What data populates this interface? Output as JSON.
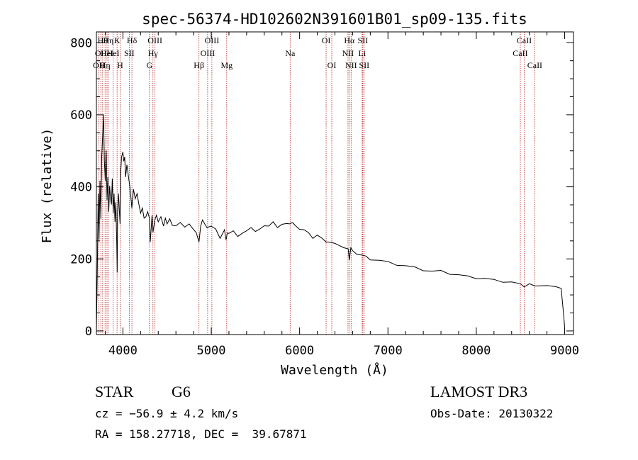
{
  "chart_data": {
    "type": "line",
    "title": "spec-56374-HD102602N391601B01_sp09-135.fits",
    "xlabel": "Wavelength (Å)",
    "ylabel": "Flux (relative)",
    "xlim": [
      3700,
      9100
    ],
    "ylim": [
      -10,
      830
    ],
    "xticks": [
      4000,
      5000,
      6000,
      7000,
      8000,
      9000
    ],
    "yticks": [
      0,
      200,
      400,
      600,
      800
    ],
    "series": [
      {
        "name": "flux",
        "x": [
          3700,
          3710,
          3720,
          3730,
          3740,
          3750,
          3760,
          3770,
          3780,
          3790,
          3800,
          3810,
          3820,
          3830,
          3840,
          3850,
          3860,
          3870,
          3880,
          3890,
          3900,
          3910,
          3920,
          3930,
          3935,
          3940,
          3950,
          3960,
          3968,
          3975,
          3985,
          4000,
          4010,
          4020,
          4030,
          4045,
          4060,
          4080,
          4101,
          4120,
          4140,
          4160,
          4180,
          4200,
          4220,
          4240,
          4260,
          4280,
          4300,
          4310,
          4330,
          4340,
          4360,
          4380,
          4400,
          4430,
          4460,
          4480,
          4500,
          4530,
          4560,
          4600,
          4650,
          4700,
          4750,
          4800,
          4830,
          4861,
          4880,
          4900,
          4950,
          5000,
          5050,
          5100,
          5150,
          5167,
          5183,
          5200,
          5250,
          5300,
          5350,
          5400,
          5450,
          5500,
          5550,
          5600,
          5650,
          5700,
          5750,
          5800,
          5850,
          5890,
          5920,
          5950,
          6000,
          6050,
          6100,
          6150,
          6200,
          6250,
          6300,
          6350,
          6400,
          6450,
          6500,
          6550,
          6563,
          6580,
          6600,
          6650,
          6700,
          6750,
          6800,
          6900,
          7000,
          7100,
          7200,
          7300,
          7400,
          7500,
          7600,
          7700,
          7800,
          7900,
          8000,
          8100,
          8200,
          8300,
          8400,
          8498,
          8542,
          8600,
          8662,
          8700,
          8800,
          8900,
          8960,
          8990,
          9000
        ],
        "y": [
          0,
          160,
          380,
          250,
          420,
          310,
          480,
          540,
          600,
          470,
          420,
          500,
          360,
          430,
          330,
          400,
          370,
          350,
          420,
          330,
          380,
          300,
          360,
          240,
          160,
          330,
          380,
          330,
          300,
          440,
          480,
          500,
          470,
          480,
          430,
          460,
          430,
          400,
          340,
          390,
          370,
          380,
          350,
          330,
          340,
          310,
          320,
          330,
          310,
          250,
          320,
          270,
          310,
          320,
          300,
          320,
          290,
          310,
          300,
          310,
          290,
          295,
          300,
          285,
          300,
          280,
          270,
          250,
          290,
          305,
          290,
          290,
          280,
          260,
          280,
          250,
          275,
          270,
          275,
          265,
          270,
          275,
          290,
          275,
          280,
          295,
          290,
          300,
          290,
          295,
          295,
          300,
          300,
          290,
          285,
          280,
          270,
          260,
          265,
          255,
          250,
          245,
          240,
          240,
          230,
          225,
          200,
          230,
          220,
          215,
          210,
          205,
          200,
          195,
          190,
          185,
          180,
          175,
          170,
          165,
          165,
          160,
          155,
          150,
          148,
          145,
          140,
          138,
          135,
          128,
          125,
          130,
          122,
          128,
          125,
          120,
          118,
          40,
          10
        ]
      }
    ],
    "lines": [
      {
        "wl": 3727,
        "label": "OII",
        "row": 2
      },
      {
        "wl": 3750,
        "label": "OII",
        "row": 1
      },
      {
        "wl": 3771,
        "label": "Hθ",
        "row": 0
      },
      {
        "wl": 3798,
        "label": "Hη",
        "row": 2
      },
      {
        "wl": 3820,
        "label": "HeI",
        "row": 1
      },
      {
        "wl": 3835,
        "label": "Hη",
        "row": 0
      },
      {
        "wl": 3889,
        "label": "HeI",
        "row": 1
      },
      {
        "wl": 3934,
        "label": "K",
        "row": 0
      },
      {
        "wl": 3968,
        "label": "H",
        "row": 2
      },
      {
        "wl": 4072,
        "label": "SII",
        "row": 1
      },
      {
        "wl": 4102,
        "label": "Hδ",
        "row": 0
      },
      {
        "wl": 4300,
        "label": "G",
        "row": 2
      },
      {
        "wl": 4340,
        "label": "Hγ",
        "row": 1
      },
      {
        "wl": 4363,
        "label": "OIII",
        "row": 0
      },
      {
        "wl": 4861,
        "label": "Hβ",
        "row": 2
      },
      {
        "wl": 4959,
        "label": "OIII",
        "row": 1
      },
      {
        "wl": 5007,
        "label": "OIII",
        "row": 0
      },
      {
        "wl": 5175,
        "label": "Mg",
        "row": 2
      },
      {
        "wl": 5893,
        "label": "Na",
        "row": 1
      },
      {
        "wl": 6300,
        "label": "OI",
        "row": 0
      },
      {
        "wl": 6364,
        "label": "OI",
        "row": 2
      },
      {
        "wl": 6548,
        "label": "NII",
        "row": 1
      },
      {
        "wl": 6563,
        "label": "Hα",
        "row": 0
      },
      {
        "wl": 6583,
        "label": "NII",
        "row": 2
      },
      {
        "wl": 6708,
        "label": "Li",
        "row": 1
      },
      {
        "wl": 6716,
        "label": "SII",
        "row": 0
      },
      {
        "wl": 6731,
        "label": "SII",
        "row": 2
      },
      {
        "wl": 8498,
        "label": "CaII",
        "row": 1
      },
      {
        "wl": 8542,
        "label": "CaII",
        "row": 0
      },
      {
        "wl": 8662,
        "label": "CaII",
        "row": 2
      }
    ]
  },
  "info": {
    "class": "STAR",
    "subclass": "G6",
    "cz": "cz = −56.9 ± 4.2 km/s",
    "radec": "RA = 158.27718, DEC =  39.67871",
    "survey": "LAMOST DR3",
    "obsdate": "Obs-Date: 20130322"
  }
}
